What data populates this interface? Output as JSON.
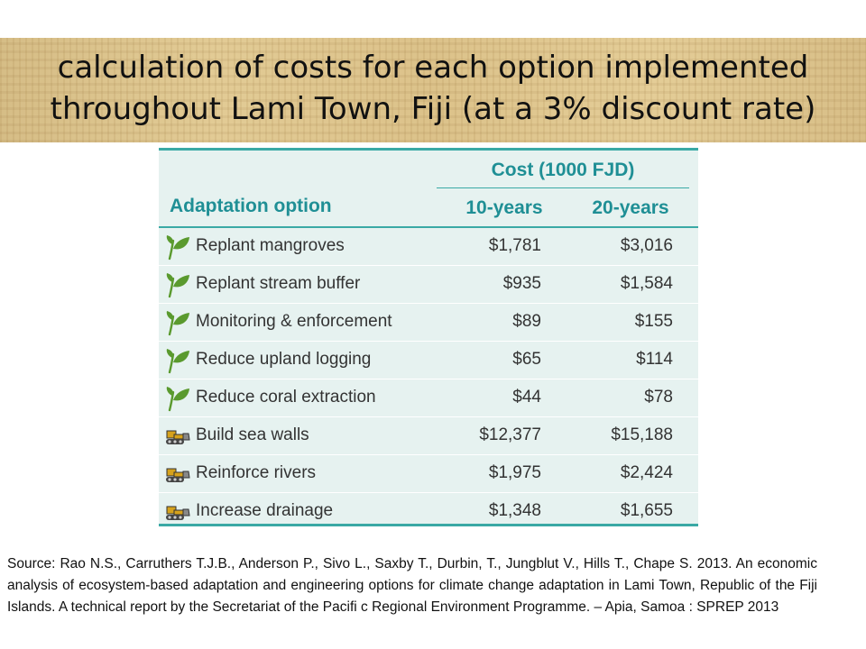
{
  "title": {
    "line1": "calculation of costs for each option implemented",
    "line2": "throughout Lami Town, Fiji (at a 3% discount rate)"
  },
  "table": {
    "cost_header": "Cost (1000 FJD)",
    "option_header": "Adaptation option",
    "col_10": "10-years",
    "col_20": "20-years",
    "colors": {
      "accent": "#3aa9a5",
      "header_text": "#1f8f95",
      "background": "#e6f2f0",
      "leaf_icon": "#5a9a2e",
      "machine_icon": "#d6a21c"
    },
    "rows": [
      {
        "icon": "leaf-icon",
        "option": "Replant mangroves",
        "y10": "$1,781",
        "y20": "$3,016"
      },
      {
        "icon": "leaf-icon",
        "option": "Replant stream buffer",
        "y10": "$935",
        "y20": "$1,584"
      },
      {
        "icon": "leaf-icon",
        "option": "Monitoring & enforcement",
        "y10": "$89",
        "y20": "$155"
      },
      {
        "icon": "leaf-icon",
        "option": "Reduce upland logging",
        "y10": "$65",
        "y20": "$114"
      },
      {
        "icon": "leaf-icon",
        "option": "Reduce coral extraction",
        "y10": "$44",
        "y20": "$78"
      },
      {
        "icon": "bulldozer-icon",
        "option": "Build sea walls",
        "y10": "$12,377",
        "y20": "$15,188"
      },
      {
        "icon": "bulldozer-icon",
        "option": "Reinforce rivers",
        "y10": "$1,975",
        "y20": "$2,424"
      },
      {
        "icon": "bulldozer-icon",
        "option": "Increase drainage",
        "y10": "$1,348",
        "y20": "$1,655"
      }
    ]
  },
  "source": "Source: Rao N.S., Carruthers T.J.B., Anderson P., Sivo L., Saxby T., Durbin, T., Jungblut V., Hills T., Chape S. 2013. An economic analysis of ecosystem-based adaptation and engineering options for climate change adaptation in Lami Town, Republic of the Fiji Islands. A technical report by the Secretariat of the Pacifi c Regional Environment Programme. – Apia, Samoa : SPREP 2013"
}
